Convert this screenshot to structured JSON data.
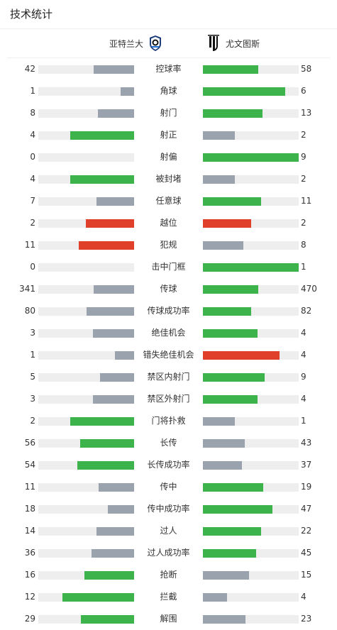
{
  "title": "技术统计",
  "teams": {
    "home": {
      "name": "亚特兰大",
      "logo_icon": "atalanta-logo-icon"
    },
    "away": {
      "name": "尤文图斯",
      "logo_icon": "juventus-logo-icon"
    }
  },
  "colors": {
    "green": "#3cb44b",
    "gray": "#9aa2ae",
    "red": "#e0402a",
    "track": "#eeeeee"
  },
  "stats": [
    {
      "label": "控球率",
      "home": "42",
      "away": "58",
      "home_frac": 0.42,
      "away_frac": 0.58,
      "home_color": "gray",
      "away_color": "green"
    },
    {
      "label": "角球",
      "home": "1",
      "away": "6",
      "home_frac": 0.143,
      "away_frac": 0.857,
      "home_color": "gray",
      "away_color": "green"
    },
    {
      "label": "射门",
      "home": "8",
      "away": "13",
      "home_frac": 0.381,
      "away_frac": 0.619,
      "home_color": "gray",
      "away_color": "green"
    },
    {
      "label": "射正",
      "home": "4",
      "away": "2",
      "home_frac": 0.667,
      "away_frac": 0.333,
      "home_color": "green",
      "away_color": "gray"
    },
    {
      "label": "射偏",
      "home": "0",
      "away": "9",
      "home_frac": 0,
      "away_frac": 1,
      "home_color": "gray",
      "away_color": "green"
    },
    {
      "label": "被封堵",
      "home": "4",
      "away": "2",
      "home_frac": 0.667,
      "away_frac": 0.333,
      "home_color": "green",
      "away_color": "gray"
    },
    {
      "label": "任意球",
      "home": "7",
      "away": "11",
      "home_frac": 0.389,
      "away_frac": 0.611,
      "home_color": "gray",
      "away_color": "green"
    },
    {
      "label": "越位",
      "home": "2",
      "away": "2",
      "home_frac": 0.5,
      "away_frac": 0.5,
      "home_color": "red",
      "away_color": "red"
    },
    {
      "label": "犯规",
      "home": "11",
      "away": "8",
      "home_frac": 0.579,
      "away_frac": 0.421,
      "home_color": "red",
      "away_color": "gray"
    },
    {
      "label": "击中门框",
      "home": "0",
      "away": "1",
      "home_frac": 0,
      "away_frac": 1,
      "home_color": "gray",
      "away_color": "green"
    },
    {
      "label": "传球",
      "home": "341",
      "away": "470",
      "home_frac": 0.42,
      "away_frac": 0.58,
      "home_color": "gray",
      "away_color": "green"
    },
    {
      "label": "传球成功率",
      "home": "80",
      "away": "82",
      "home_frac": 0.494,
      "away_frac": 0.506,
      "home_color": "gray",
      "away_color": "green"
    },
    {
      "label": "绝佳机会",
      "home": "3",
      "away": "4",
      "home_frac": 0.429,
      "away_frac": 0.571,
      "home_color": "gray",
      "away_color": "green"
    },
    {
      "label": "错失绝佳机会",
      "home": "1",
      "away": "4",
      "home_frac": 0.2,
      "away_frac": 0.8,
      "home_color": "gray",
      "away_color": "red"
    },
    {
      "label": "禁区内射门",
      "home": "5",
      "away": "9",
      "home_frac": 0.357,
      "away_frac": 0.643,
      "home_color": "gray",
      "away_color": "green"
    },
    {
      "label": "禁区外射门",
      "home": "3",
      "away": "4",
      "home_frac": 0.429,
      "away_frac": 0.571,
      "home_color": "gray",
      "away_color": "green"
    },
    {
      "label": "门将扑救",
      "home": "2",
      "away": "1",
      "home_frac": 0.667,
      "away_frac": 0.333,
      "home_color": "green",
      "away_color": "gray"
    },
    {
      "label": "长传",
      "home": "56",
      "away": "43",
      "home_frac": 0.566,
      "away_frac": 0.434,
      "home_color": "green",
      "away_color": "gray"
    },
    {
      "label": "长传成功率",
      "home": "54",
      "away": "37",
      "home_frac": 0.593,
      "away_frac": 0.407,
      "home_color": "green",
      "away_color": "gray"
    },
    {
      "label": "传中",
      "home": "11",
      "away": "19",
      "home_frac": 0.367,
      "away_frac": 0.633,
      "home_color": "gray",
      "away_color": "green"
    },
    {
      "label": "传中成功率",
      "home": "18",
      "away": "47",
      "home_frac": 0.277,
      "away_frac": 0.723,
      "home_color": "gray",
      "away_color": "green"
    },
    {
      "label": "过人",
      "home": "14",
      "away": "22",
      "home_frac": 0.389,
      "away_frac": 0.611,
      "home_color": "gray",
      "away_color": "green"
    },
    {
      "label": "过人成功率",
      "home": "36",
      "away": "45",
      "home_frac": 0.444,
      "away_frac": 0.556,
      "home_color": "gray",
      "away_color": "green"
    },
    {
      "label": "抢断",
      "home": "16",
      "away": "15",
      "home_frac": 0.516,
      "away_frac": 0.484,
      "home_color": "green",
      "away_color": "gray"
    },
    {
      "label": "拦截",
      "home": "12",
      "away": "4",
      "home_frac": 0.75,
      "away_frac": 0.25,
      "home_color": "green",
      "away_color": "gray"
    },
    {
      "label": "解围",
      "home": "29",
      "away": "23",
      "home_frac": 0.558,
      "away_frac": 0.442,
      "home_color": "green",
      "away_color": "gray"
    }
  ]
}
